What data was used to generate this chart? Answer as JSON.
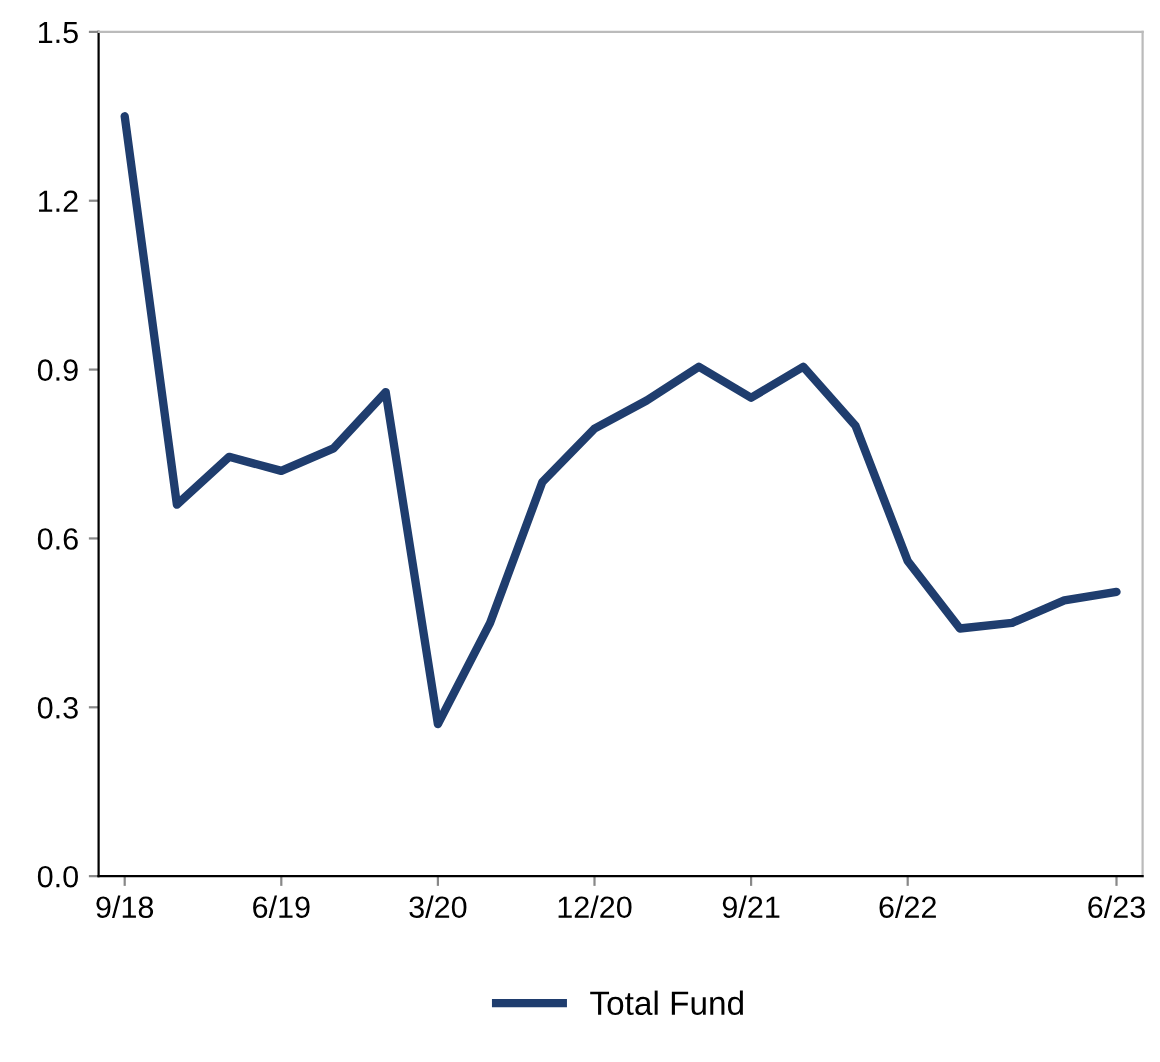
{
  "chart_data": {
    "type": "line",
    "categories": [
      "9/18",
      null,
      null,
      "6/19",
      null,
      null,
      "3/20",
      null,
      null,
      "12/20",
      null,
      null,
      "9/21",
      null,
      null,
      "6/22",
      null,
      null,
      null,
      "6/23"
    ],
    "series": [
      {
        "name": "Total Fund",
        "color": "#1f3d6e",
        "values": [
          1.35,
          0.66,
          0.745,
          0.72,
          0.76,
          0.86,
          0.27,
          0.45,
          0.7,
          0.795,
          0.845,
          0.905,
          0.85,
          0.905,
          0.8,
          0.56,
          0.44,
          0.45,
          0.49,
          0.505
        ]
      }
    ],
    "ylim": [
      0,
      1.5
    ],
    "yticks": [
      {
        "value": 0,
        "label": "0.0"
      },
      0.3,
      0.6,
      0.9,
      1.2,
      1.5
    ],
    "grid": false,
    "legend": "bottom",
    "marker": "none",
    "line_style": "solid"
  }
}
